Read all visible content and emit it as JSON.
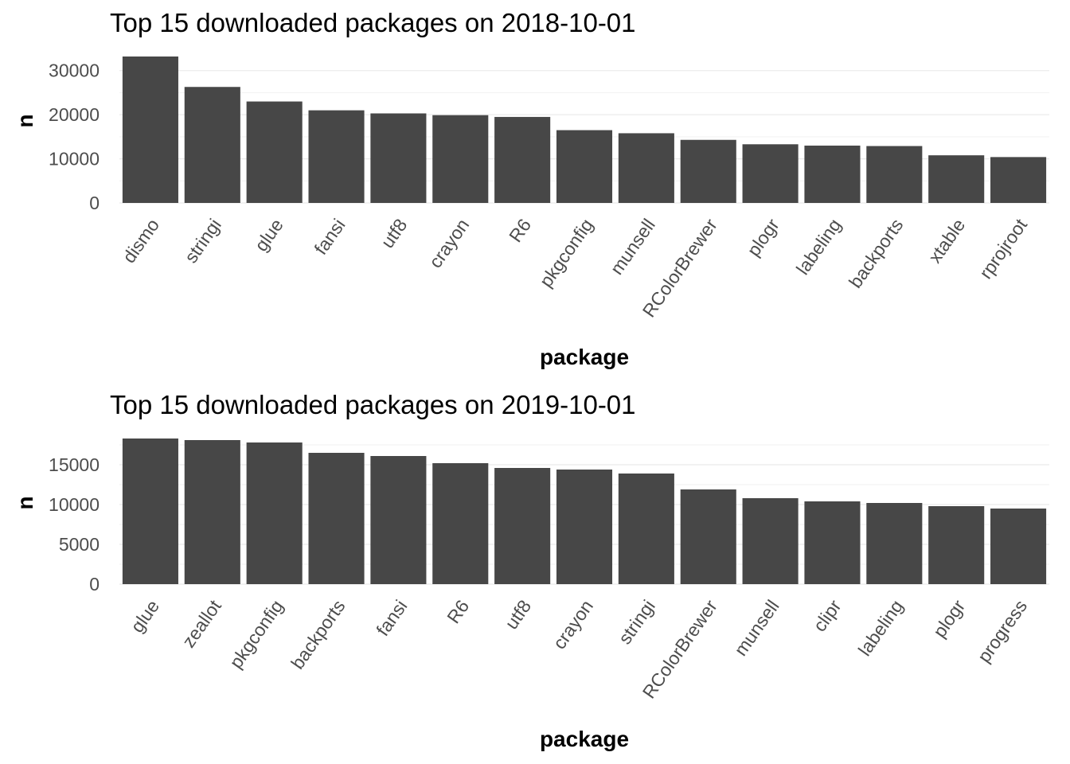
{
  "chart_data": [
    {
      "type": "bar",
      "title": "Top 15 downloaded packages on 2018-10-01",
      "xlabel": "package",
      "ylabel": "n",
      "categories": [
        "dismo",
        "stringi",
        "glue",
        "fansi",
        "utf8",
        "crayon",
        "R6",
        "pkgconfig",
        "munsell",
        "RColorBrewer",
        "plogr",
        "labeling",
        "backports",
        "xtable",
        "rprojroot"
      ],
      "values": [
        33200,
        26300,
        23000,
        21000,
        20300,
        19900,
        19500,
        16500,
        15800,
        14300,
        13300,
        13000,
        12900,
        10800,
        10400
      ],
      "yticks": [
        0,
        10000,
        20000,
        30000
      ],
      "ylim": [
        0,
        33200
      ],
      "grid": true,
      "bar_color": "#474747"
    },
    {
      "type": "bar",
      "title": "Top 15 downloaded packages on 2019-10-01",
      "xlabel": "package",
      "ylabel": "n",
      "categories": [
        "glue",
        "zeallot",
        "pkgconfig",
        "backports",
        "fansi",
        "R6",
        "utf8",
        "crayon",
        "stringi",
        "RColorBrewer",
        "munsell",
        "clipr",
        "labeling",
        "plogr",
        "progress"
      ],
      "values": [
        18300,
        18100,
        17800,
        16500,
        16100,
        15200,
        14600,
        14400,
        13900,
        11900,
        10800,
        10400,
        10200,
        9800,
        9500
      ],
      "yticks": [
        0,
        5000,
        10000,
        15000
      ],
      "ylim": [
        0,
        18300
      ],
      "grid": true,
      "bar_color": "#474747"
    }
  ]
}
